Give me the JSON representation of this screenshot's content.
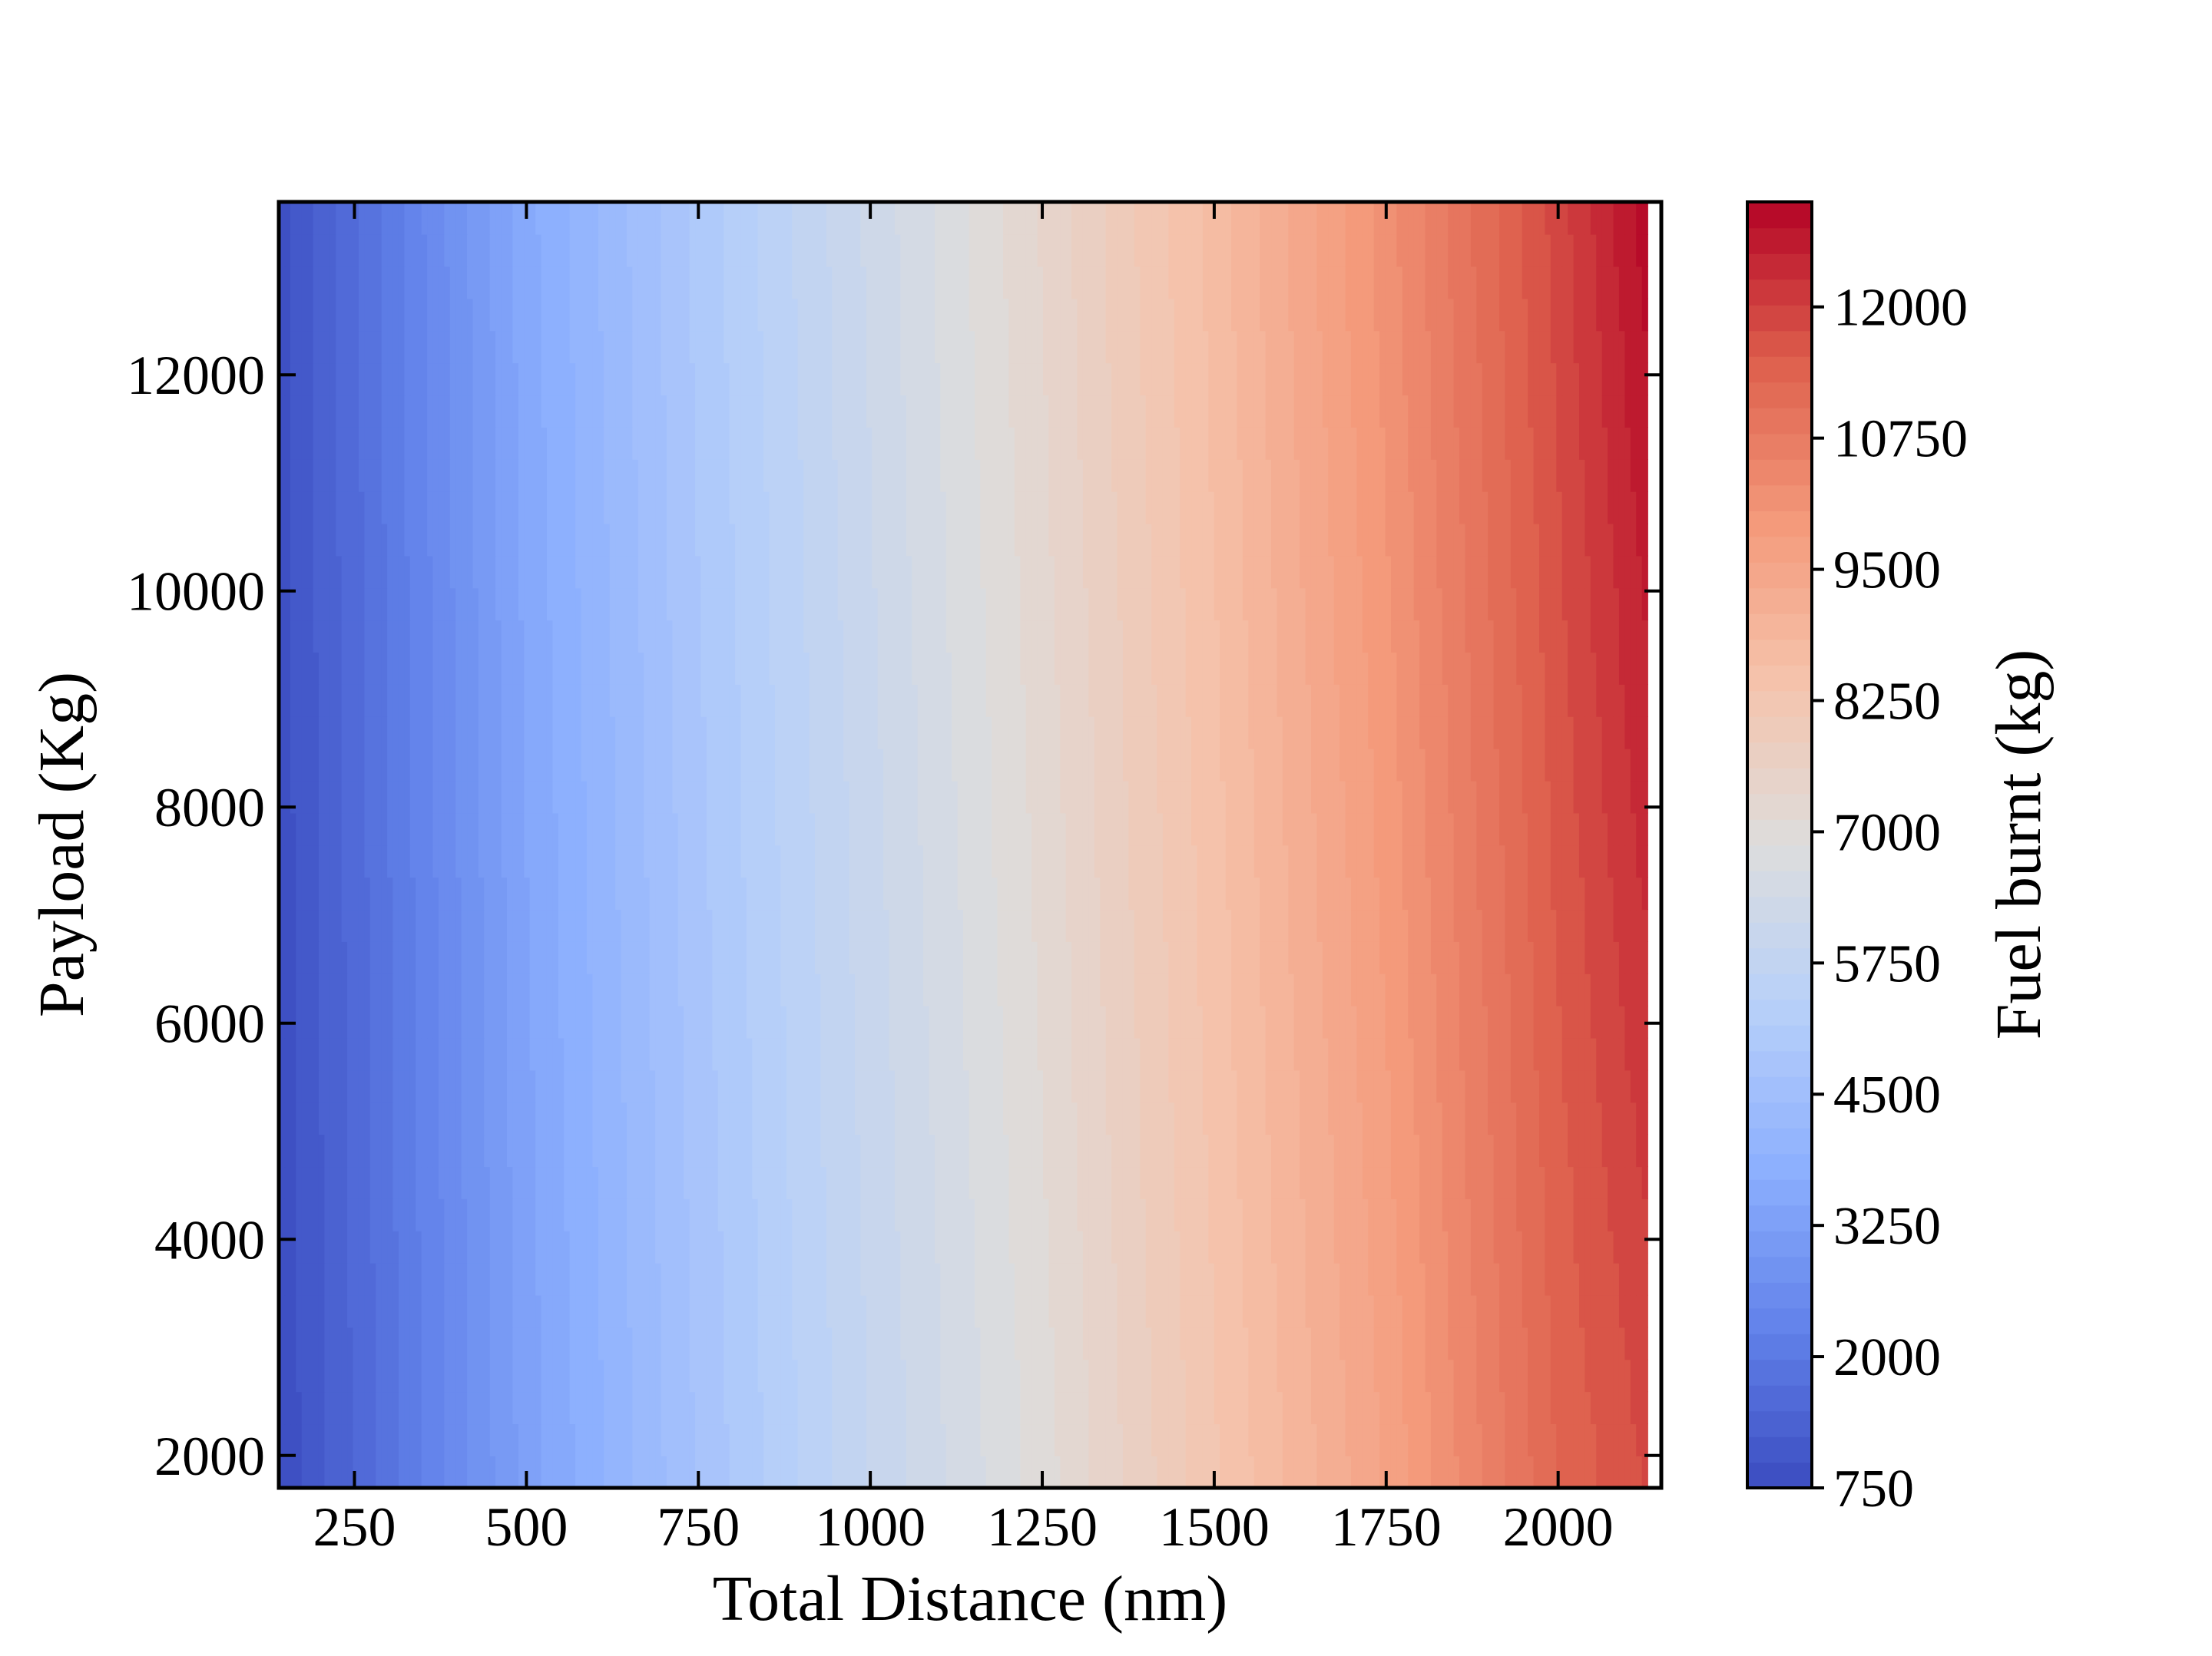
{
  "chart_data": {
    "type": "contour",
    "title": "",
    "xlabel": "Total Distance (nm)",
    "ylabel": "Payload (Kg)",
    "xlim": [
      140,
      2150
    ],
    "ylim": [
      1700,
      13600
    ],
    "x_ticks": [
      250,
      500,
      750,
      1000,
      1250,
      1500,
      1750,
      2000
    ],
    "y_ticks": [
      2000,
      4000,
      6000,
      8000,
      10000,
      12000
    ],
    "colormap": "coolwarm",
    "colorbar": {
      "label": "Fuel burnt (kg)",
      "range": [
        750,
        13000
      ],
      "ticks": [
        750,
        2000,
        3250,
        4500,
        5750,
        7000,
        8250,
        9500,
        10750,
        12000
      ],
      "levels": 50
    },
    "fuel_profile": {
      "x": [
        140,
        250,
        500,
        750,
        1000,
        1250,
        1500,
        1750,
        2000,
        2130
      ],
      "fuel_at_low_payload": [
        800,
        1500,
        3300,
        4700,
        5900,
        7000,
        8300,
        9600,
        11300,
        11800
      ],
      "fuel_at_high_payload": [
        900,
        1700,
        3600,
        5000,
        6200,
        7400,
        8700,
        10200,
        11900,
        12900
      ]
    },
    "grid": false,
    "tick_direction": "in",
    "ticks_on_all_sides": true
  }
}
